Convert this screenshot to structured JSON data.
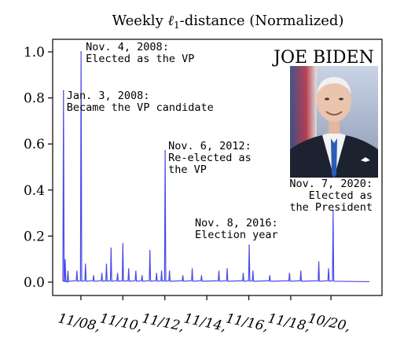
{
  "chart_data": {
    "type": "line",
    "title_prefix": "Weekly ",
    "title_math": "ℓ",
    "title_sub": "1",
    "title_suffix": "-distance (Normalized)",
    "ylim": [
      0,
      1.0
    ],
    "yticks": [
      0.0,
      0.2,
      0.4,
      0.6,
      0.8,
      1.0
    ],
    "ytick_labels": [
      "0.0",
      "0.2",
      "0.4",
      "0.6",
      "0.8",
      "1.0"
    ],
    "xlim": [
      "2007-06-01",
      "2022-08-01"
    ],
    "xticks": [
      "2008-11-01",
      "2010-11-01",
      "2012-11-01",
      "2014-11-01",
      "2016-11-01",
      "2018-11-01",
      "2020-10-01"
    ],
    "xtick_labels": [
      "11/08",
      "11/10",
      "11/12",
      "11/14",
      "11/16",
      "11/18",
      "10/20"
    ],
    "series_color": "#4a4ae8",
    "person_label": "JOE BIDEN",
    "peaks": [
      {
        "date": "2008-01-03",
        "value": 0.83
      },
      {
        "date": "2008-11-04",
        "value": 1.0
      },
      {
        "date": "2012-11-06",
        "value": 0.57
      },
      {
        "date": "2016-11-08",
        "value": 0.16
      },
      {
        "date": "2020-11-07",
        "value": 0.31
      }
    ],
    "minor_spikes": [
      {
        "date": "2008-02-01",
        "value": 0.1
      },
      {
        "date": "2008-03-20",
        "value": 0.05
      },
      {
        "date": "2008-08-23",
        "value": 0.05
      },
      {
        "date": "2009-01-20",
        "value": 0.08
      },
      {
        "date": "2009-06-10",
        "value": 0.03
      },
      {
        "date": "2009-11-01",
        "value": 0.04
      },
      {
        "date": "2010-01-20",
        "value": 0.08
      },
      {
        "date": "2010-04-10",
        "value": 0.15
      },
      {
        "date": "2010-08-01",
        "value": 0.04
      },
      {
        "date": "2010-11-01",
        "value": 0.17
      },
      {
        "date": "2011-02-10",
        "value": 0.06
      },
      {
        "date": "2011-06-15",
        "value": 0.05
      },
      {
        "date": "2011-10-01",
        "value": 0.03
      },
      {
        "date": "2012-02-15",
        "value": 0.14
      },
      {
        "date": "2012-06-10",
        "value": 0.04
      },
      {
        "date": "2012-09-05",
        "value": 0.05
      },
      {
        "date": "2013-01-21",
        "value": 0.05
      },
      {
        "date": "2013-09-10",
        "value": 0.03
      },
      {
        "date": "2014-02-20",
        "value": 0.06
      },
      {
        "date": "2014-08-01",
        "value": 0.03
      },
      {
        "date": "2015-05-30",
        "value": 0.05
      },
      {
        "date": "2015-10-21",
        "value": 0.06
      },
      {
        "date": "2016-07-27",
        "value": 0.04
      },
      {
        "date": "2017-01-12",
        "value": 0.05
      },
      {
        "date": "2017-11-01",
        "value": 0.03
      },
      {
        "date": "2018-10-10",
        "value": 0.04
      },
      {
        "date": "2019-04-25",
        "value": 0.05
      },
      {
        "date": "2020-03-03",
        "value": 0.09
      },
      {
        "date": "2020-08-20",
        "value": 0.06
      }
    ],
    "annotations": [
      {
        "lines": [
          "Nov. 4, 2008:",
          "Elected as the VP"
        ],
        "align": "start"
      },
      {
        "lines": [
          "Jan. 3, 2008:",
          "Became the VP candidate"
        ],
        "align": "start"
      },
      {
        "lines": [
          "Nov. 6, 2012:",
          "Re-elected as",
          "the VP"
        ],
        "align": "start"
      },
      {
        "lines": [
          "Nov. 8, 2016:",
          "Election year"
        ],
        "align": "start"
      },
      {
        "lines": [
          "Nov. 7, 2020:",
          "Elected as",
          "the President"
        ],
        "align": "end"
      }
    ]
  }
}
